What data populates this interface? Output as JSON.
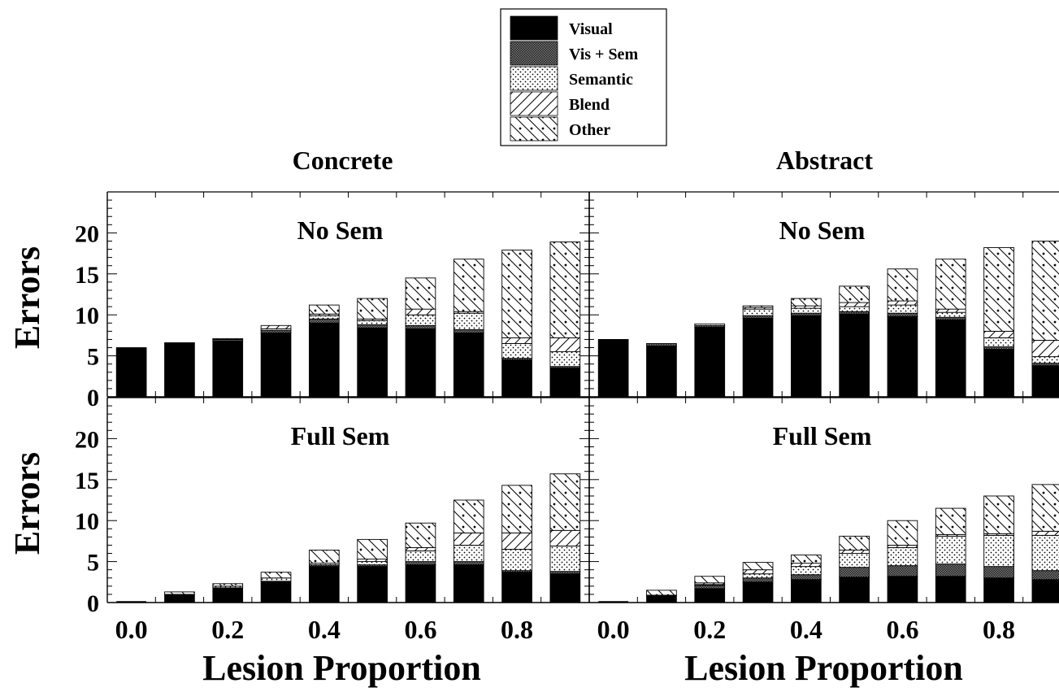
{
  "chart_data": {
    "type": "bar",
    "stacked": true,
    "ylabel": "Errors",
    "xlabel": "Lesion Proportion",
    "x": [
      0.0,
      0.1,
      0.2,
      0.3,
      0.4,
      0.5,
      0.6,
      0.7,
      0.8,
      0.9
    ],
    "x_tick_labels": [
      "0.0",
      "0.2",
      "0.4",
      "0.6",
      "0.8"
    ],
    "x_tick_values": [
      0.0,
      0.2,
      0.4,
      0.6,
      0.8
    ],
    "ylim": [
      0,
      25
    ],
    "y_ticks": [
      0,
      5,
      10,
      15,
      20
    ],
    "legend": {
      "placement": "top-center",
      "entries": [
        {
          "name": "Visual",
          "pattern": "solid-black"
        },
        {
          "name": "Vis + Sem",
          "pattern": "crosshatch-dense"
        },
        {
          "name": "Semantic",
          "pattern": "dots"
        },
        {
          "name": "Blend",
          "pattern": "diagonal-stripes"
        },
        {
          "name": "Other",
          "pattern": "zigzag"
        }
      ]
    },
    "columns": [
      "Concrete",
      "Abstract"
    ],
    "rows": [
      "No Sem",
      "Full Sem"
    ],
    "panels": [
      {
        "column": "Concrete",
        "row": "No Sem",
        "series": [
          {
            "name": "Visual",
            "values": [
              6.0,
              6.6,
              6.8,
              7.8,
              9.0,
              8.4,
              8.3,
              7.8,
              4.5,
              3.5
            ]
          },
          {
            "name": "Vis + Sem",
            "values": [
              0,
              0,
              0.2,
              0.3,
              0.5,
              0.4,
              0.4,
              0.4,
              0.2,
              0.2
            ]
          },
          {
            "name": "Semantic",
            "values": [
              0,
              0,
              0,
              0.2,
              0.4,
              0.5,
              1.3,
              2.0,
              1.8,
              1.8
            ]
          },
          {
            "name": "Blend",
            "values": [
              0,
              0,
              0.1,
              0.4,
              0.2,
              0.2,
              0.7,
              0.2,
              0.7,
              1.7
            ]
          },
          {
            "name": "Other",
            "values": [
              0,
              0,
              0,
              0,
              1.1,
              2.5,
              3.8,
              6.4,
              10.7,
              11.7
            ]
          }
        ]
      },
      {
        "column": "Abstract",
        "row": "No Sem",
        "series": [
          {
            "name": "Visual",
            "values": [
              7.0,
              6.2,
              8.5,
              9.6,
              9.9,
              10.1,
              9.8,
              9.4,
              5.8,
              3.8
            ]
          },
          {
            "name": "Vis + Sem",
            "values": [
              0,
              0.3,
              0.2,
              0.3,
              0.3,
              0.3,
              0.4,
              0.3,
              0.3,
              0.3
            ]
          },
          {
            "name": "Semantic",
            "values": [
              0,
              0,
              0.2,
              0.8,
              0.6,
              0.6,
              1.0,
              0.6,
              1.1,
              0.8
            ]
          },
          {
            "name": "Blend",
            "values": [
              0,
              0,
              0,
              0.2,
              0.3,
              0.5,
              0.5,
              0.4,
              0.8,
              2.0
            ]
          },
          {
            "name": "Other",
            "values": [
              0,
              0,
              0,
              0.2,
              0.9,
              2.0,
              3.9,
              6.1,
              10.2,
              12.1
            ]
          }
        ]
      },
      {
        "column": "Concrete",
        "row": "Full Sem",
        "series": [
          {
            "name": "Visual",
            "values": [
              0,
              1.0,
              1.8,
              2.6,
              4.4,
              4.4,
              4.6,
              4.6,
              3.7,
              3.5
            ]
          },
          {
            "name": "Vis + Sem",
            "values": [
              0,
              0,
              0,
              0,
              0.2,
              0.2,
              0.4,
              0.4,
              0.2,
              0.3
            ]
          },
          {
            "name": "Semantic",
            "values": [
              0,
              0,
              0.2,
              0.4,
              0.2,
              0.4,
              1.3,
              2.0,
              2.6,
              3.1
            ]
          },
          {
            "name": "Blend",
            "values": [
              0,
              0,
              0,
              0,
              0,
              0.3,
              0.4,
              1.5,
              2.0,
              1.9
            ]
          },
          {
            "name": "Other",
            "values": [
              0,
              0.3,
              0.3,
              0.7,
              1.6,
              2.4,
              3.0,
              4.0,
              5.8,
              6.9
            ]
          }
        ]
      },
      {
        "column": "Abstract",
        "row": "Full Sem",
        "series": [
          {
            "name": "Visual",
            "values": [
              0,
              0.8,
              1.7,
              2.5,
              2.8,
              3.1,
              3.2,
              3.2,
              3.0,
              2.8
            ]
          },
          {
            "name": "Vis + Sem",
            "values": [
              0,
              0,
              0.4,
              0.5,
              0.6,
              1.2,
              1.3,
              1.5,
              1.4,
              1.1
            ]
          },
          {
            "name": "Semantic",
            "values": [
              0,
              0,
              0.1,
              0.5,
              1.0,
              1.7,
              2.2,
              3.4,
              3.8,
              4.3
            ]
          },
          {
            "name": "Blend",
            "values": [
              0,
              0.1,
              0.2,
              0.5,
              0.4,
              0.4,
              0.3,
              0.2,
              0.2,
              0.5
            ]
          },
          {
            "name": "Other",
            "values": [
              0,
              0.6,
              0.8,
              0.9,
              1.0,
              1.7,
              3.0,
              3.2,
              4.6,
              5.7
            ]
          }
        ]
      }
    ]
  }
}
